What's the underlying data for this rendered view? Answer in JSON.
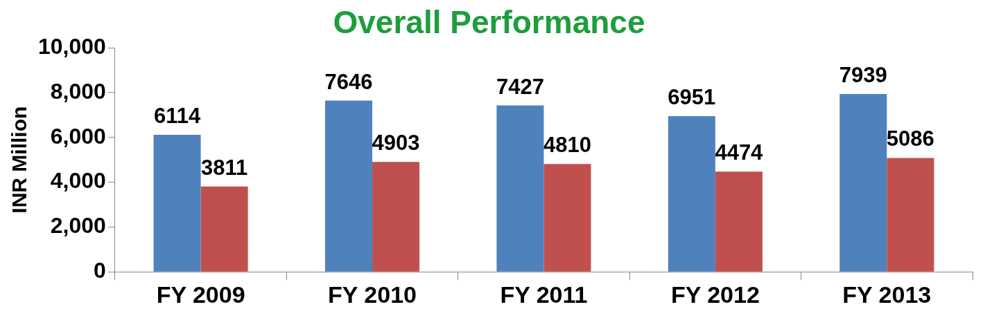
{
  "chart_data": {
    "type": "bar",
    "title": "Overall Performance",
    "ylabel": "INR Million",
    "categories": [
      "FY 2009",
      "FY 2010",
      "FY 2011",
      "FY 2012",
      "FY 2013"
    ],
    "series": [
      {
        "color": "#4f81bd",
        "values": [
          6114,
          7646,
          7427,
          6951,
          7939
        ]
      },
      {
        "color": "#c0504d",
        "values": [
          3811,
          4903,
          4810,
          4474,
          5086
        ]
      }
    ],
    "ylim": [
      0,
      10000
    ],
    "yticks": [
      {
        "value": 0,
        "label": "0"
      },
      {
        "value": 2000,
        "label": "2,000"
      },
      {
        "value": 4000,
        "label": "4,000"
      },
      {
        "value": 6000,
        "label": "6,000"
      },
      {
        "value": 8000,
        "label": "8,000"
      },
      {
        "value": 10000,
        "label": "10,000"
      }
    ],
    "data_labels": true,
    "grid": false,
    "legend": false
  }
}
